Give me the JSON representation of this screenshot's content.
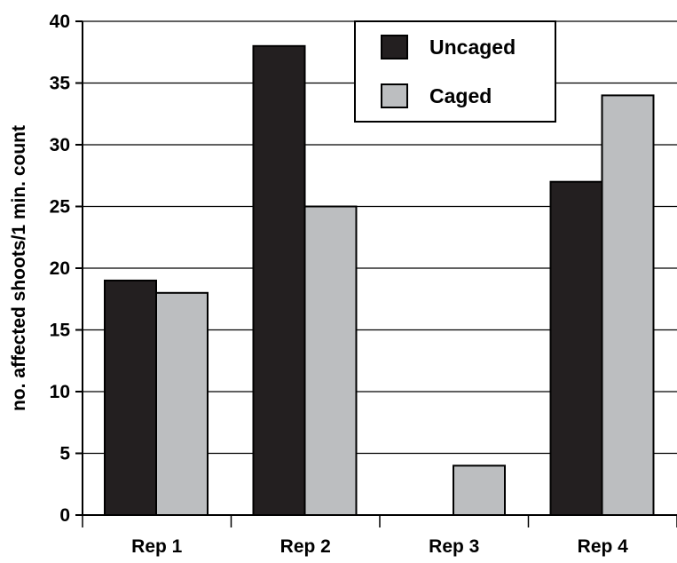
{
  "chart_data": {
    "type": "bar",
    "title": "",
    "xlabel": "",
    "ylabel": "no. affected shoots/1 min. count",
    "categories": [
      "Rep 1",
      "Rep 2",
      "Rep 3",
      "Rep 4"
    ],
    "series": [
      {
        "name": "Uncaged",
        "values": [
          19,
          38,
          0,
          27
        ],
        "color": "#231f20"
      },
      {
        "name": "Caged",
        "values": [
          18,
          25,
          4,
          34
        ],
        "color": "#bcbec0"
      }
    ],
    "ylim": [
      0,
      40
    ],
    "yticks": [
      0,
      5,
      10,
      15,
      20,
      25,
      30,
      35,
      40
    ],
    "grid": true,
    "legend": "top-right"
  }
}
